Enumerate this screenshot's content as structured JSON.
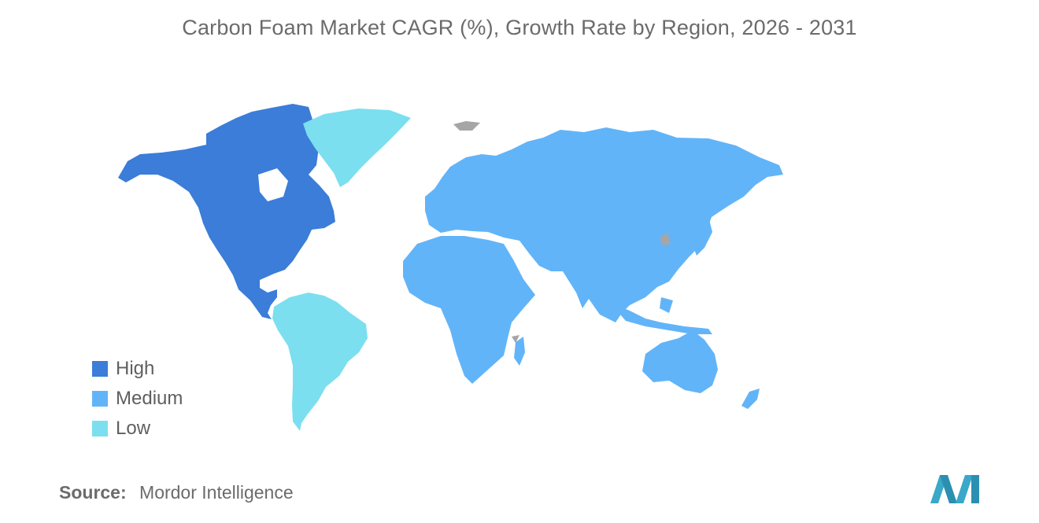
{
  "title": "Carbon Foam Market CAGR (%), Growth Rate by Region, 2026 - 2031",
  "colors": {
    "high": "#3b7dd8",
    "medium": "#62b4f8",
    "low": "#7bdfef",
    "no_data": "#a6a6a6",
    "logo": "#3aa8c8"
  },
  "legend": [
    {
      "label": "High",
      "color": "#3b7dd8"
    },
    {
      "label": "Medium",
      "color": "#62b4f8"
    },
    {
      "label": "Low",
      "color": "#7bdfef"
    }
  ],
  "regions": [
    {
      "name": "North America",
      "category": "High"
    },
    {
      "name": "South America",
      "category": "Low"
    },
    {
      "name": "Greenland",
      "category": "Low"
    },
    {
      "name": "Europe",
      "category": "Medium"
    },
    {
      "name": "Asia-Pacific",
      "category": "Medium"
    },
    {
      "name": "Middle East and Africa",
      "category": "Medium"
    }
  ],
  "source": {
    "key": "Source:",
    "value": "Mordor Intelligence"
  },
  "logo_icon": "mordor-intelligence-logo-icon"
}
